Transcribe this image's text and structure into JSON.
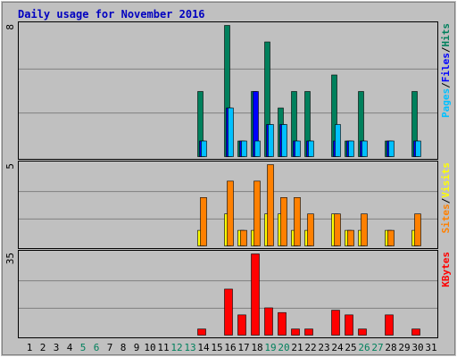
{
  "chart_data": [
    {
      "type": "bar",
      "title": "Daily usage for November 2016",
      "categories": [
        "1",
        "2",
        "3",
        "4",
        "5",
        "6",
        "7",
        "8",
        "9",
        "10",
        "11",
        "12",
        "13",
        "14",
        "15",
        "16",
        "17",
        "18",
        "19",
        "20",
        "21",
        "22",
        "23",
        "24",
        "25",
        "26",
        "27",
        "28",
        "29",
        "30",
        "31"
      ],
      "weekends": [
        "5",
        "6",
        "12",
        "13",
        "19",
        "20",
        "26",
        "27"
      ],
      "weekend_color": "#00805C",
      "ylim": [
        0,
        8
      ],
      "yticks": [
        8
      ],
      "legend_separator": "/",
      "series": [
        {
          "name": "Hits",
          "color": "#00805C",
          "values": [
            0,
            0,
            0,
            0,
            0,
            0,
            0,
            0,
            0,
            0,
            0,
            0,
            0,
            4,
            0,
            8,
            1,
            4,
            7,
            3,
            4,
            4,
            0,
            5,
            1,
            4,
            0,
            1,
            0,
            4,
            0
          ]
        },
        {
          "name": "Files",
          "color": "#0000FF",
          "values": [
            0,
            0,
            0,
            0,
            0,
            0,
            0,
            0,
            0,
            0,
            0,
            0,
            0,
            1,
            0,
            3,
            1,
            4,
            2,
            2,
            1,
            1,
            0,
            1,
            1,
            1,
            0,
            1,
            0,
            1,
            0
          ]
        },
        {
          "name": "Pages",
          "color": "#00C0FF",
          "values": [
            0,
            0,
            0,
            0,
            0,
            0,
            0,
            0,
            0,
            0,
            0,
            0,
            0,
            1,
            0,
            3,
            1,
            1,
            2,
            2,
            1,
            1,
            0,
            2,
            1,
            1,
            0,
            1,
            0,
            1,
            0
          ]
        }
      ]
    },
    {
      "type": "bar",
      "ylim": [
        0,
        5
      ],
      "yticks": [
        5
      ],
      "legend_separator": "/",
      "series": [
        {
          "name": "Visits",
          "color": "#FFFF00",
          "values": [
            0,
            0,
            0,
            0,
            0,
            0,
            0,
            0,
            0,
            0,
            0,
            0,
            0,
            1,
            0,
            2,
            1,
            1,
            2,
            2,
            1,
            1,
            0,
            2,
            1,
            1,
            0,
            1,
            0,
            1,
            0
          ]
        },
        {
          "name": "Sites",
          "color": "#FF8000",
          "values": [
            0,
            0,
            0,
            0,
            0,
            0,
            0,
            0,
            0,
            0,
            0,
            0,
            0,
            3,
            0,
            4,
            1,
            4,
            5,
            3,
            3,
            2,
            0,
            2,
            1,
            2,
            0,
            1,
            0,
            2,
            0
          ]
        }
      ]
    },
    {
      "type": "bar",
      "ylim": [
        0,
        35
      ],
      "yticks": [
        35
      ],
      "series": [
        {
          "name": "KBytes",
          "color": "#FF0000",
          "values": [
            0,
            0,
            0,
            0,
            0,
            0,
            0,
            0,
            0,
            0,
            0,
            0,
            0,
            3,
            0,
            20,
            9,
            35,
            12,
            10,
            3,
            3,
            0,
            11,
            9,
            3,
            0,
            9,
            0,
            3,
            0
          ]
        }
      ]
    }
  ]
}
